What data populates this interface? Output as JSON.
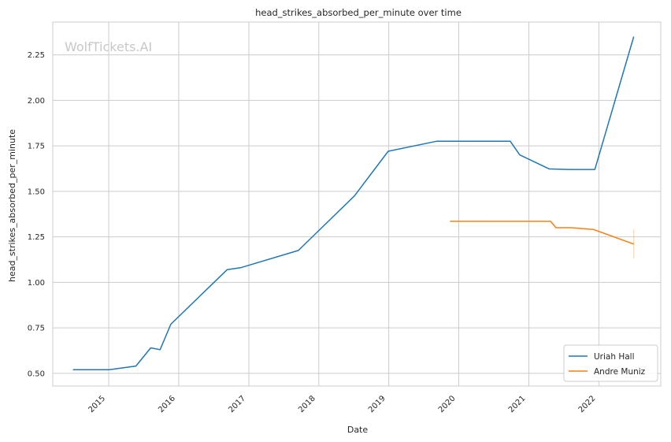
{
  "chart_data": {
    "type": "line",
    "title": "head_strikes_absorbed_per_minute over time",
    "xlabel": "Date",
    "ylabel": "head_strikes_absorbed_per_minute",
    "watermark": "WolfTickets.AI",
    "xlim": [
      "2014-03-15",
      "2022-11-20"
    ],
    "ylim": [
      0.43,
      2.43
    ],
    "x_ticks": [
      "2015",
      "2016",
      "2017",
      "2018",
      "2019",
      "2020",
      "2021",
      "2022"
    ],
    "y_ticks": [
      "0.50",
      "0.75",
      "1.00",
      "1.25",
      "1.50",
      "1.75",
      "2.00",
      "2.25"
    ],
    "grid": true,
    "legend_position": "lower-right",
    "series": [
      {
        "name": "Uriah Hall",
        "color": "#1f77b4",
        "x": [
          "2014-06-28",
          "2015-01-03",
          "2015-05-23",
          "2015-08-08",
          "2015-09-26",
          "2015-11-21",
          "2016-09-10",
          "2016-11-19",
          "2017-09-16",
          "2018-07-06",
          "2018-12-29",
          "2019-09-07",
          "2020-09-26",
          "2020-11-14",
          "2021-04-17",
          "2021-07-31",
          "2021-12-11",
          "2022-07-02"
        ],
        "values": [
          0.52,
          0.52,
          0.54,
          0.64,
          0.63,
          0.77,
          1.07,
          1.08,
          1.175,
          1.475,
          1.72,
          1.775,
          1.775,
          1.7,
          1.623,
          1.62,
          1.62,
          2.35
        ]
      },
      {
        "name": "Andre Muniz",
        "color": "#ff7f0e",
        "x": [
          "2019-11-16",
          "2021-04-24",
          "2021-05-22",
          "2021-08-07",
          "2021-12-04",
          "2022-07-02"
        ],
        "values": [
          1.335,
          1.335,
          1.3,
          1.3,
          1.29,
          1.21
        ]
      }
    ]
  }
}
